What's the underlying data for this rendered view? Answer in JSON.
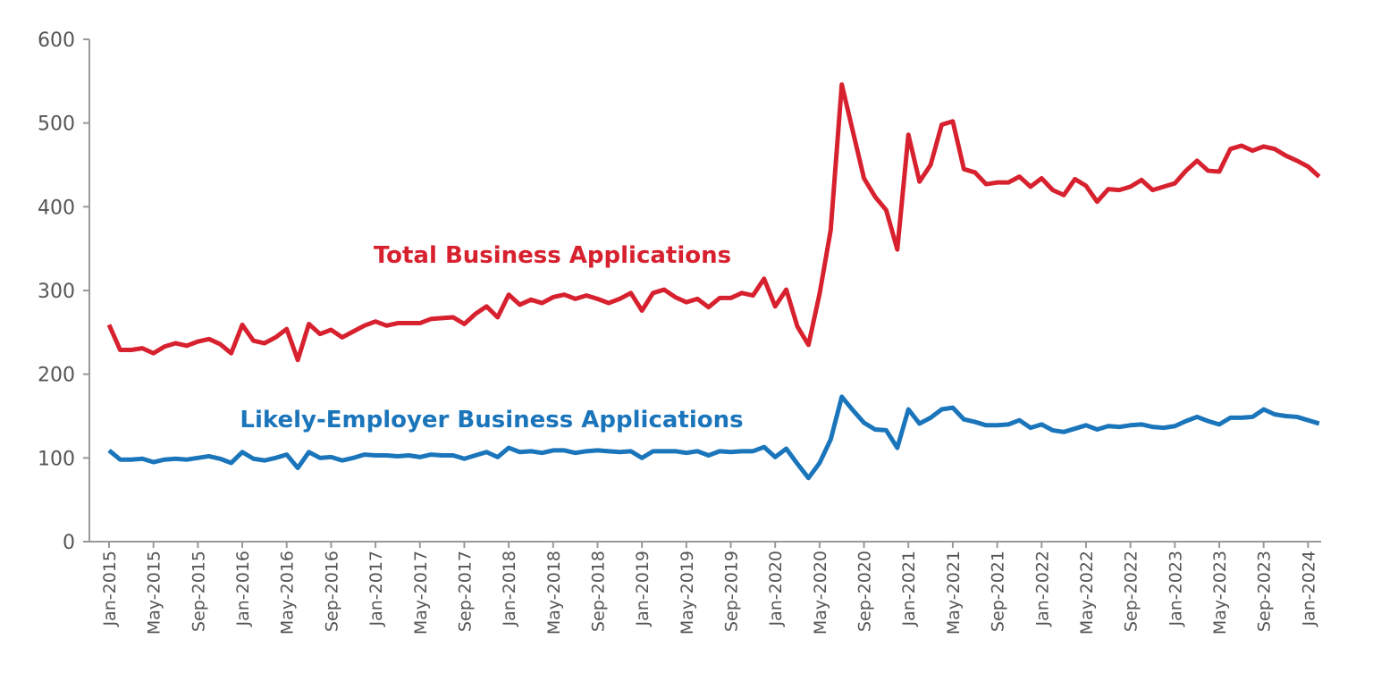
{
  "chart_data": {
    "type": "line",
    "categories": [
      "Jan-2015",
      null,
      null,
      null,
      "May-2015",
      null,
      null,
      null,
      "Sep-2015",
      null,
      null,
      null,
      "Jan-2016",
      null,
      null,
      null,
      "May-2016",
      null,
      null,
      null,
      "Sep-2016",
      null,
      null,
      null,
      "Jan-2017",
      null,
      null,
      null,
      "May-2017",
      null,
      null,
      null,
      "Sep-2017",
      null,
      null,
      null,
      "Jan-2018",
      null,
      null,
      null,
      "May-2018",
      null,
      null,
      null,
      "Sep-2018",
      null,
      null,
      null,
      "Jan-2019",
      null,
      null,
      null,
      "May-2019",
      null,
      null,
      null,
      "Sep-2019",
      null,
      null,
      null,
      "Jan-2020",
      null,
      null,
      null,
      "May-2020",
      null,
      null,
      null,
      "Sep-2020",
      null,
      null,
      null,
      "Jan-2021",
      null,
      null,
      null,
      "May-2021",
      null,
      null,
      null,
      "Sep-2021",
      null,
      null,
      null,
      "Jan-2022",
      null,
      null,
      null,
      "May-2022",
      null,
      null,
      null,
      "Sep-2022",
      null,
      null,
      null,
      "Jan-2023",
      null,
      null,
      null,
      "May-2023",
      null,
      null,
      null,
      "Sep-2023",
      null,
      null,
      null,
      "Jan-2024",
      null
    ],
    "series": [
      {
        "name": "Total Business Applications",
        "color": "#d7212f",
        "values": [
          259,
          229,
          229,
          231,
          225,
          233,
          237,
          234,
          239,
          242,
          236,
          225,
          259,
          240,
          237,
          244,
          254,
          217,
          260,
          248,
          253,
          244,
          251,
          258,
          263,
          258,
          261,
          261,
          261,
          266,
          267,
          268,
          260,
          272,
          281,
          268,
          295,
          283,
          289,
          285,
          292,
          295,
          290,
          294,
          290,
          285,
          290,
          297,
          276,
          297,
          301,
          292,
          286,
          290,
          280,
          291,
          291,
          297,
          294,
          314,
          281,
          301,
          257,
          235,
          296,
          372,
          546,
          490,
          434,
          412,
          396,
          349,
          486,
          430,
          450,
          498,
          502,
          445,
          441,
          427,
          429,
          429,
          436,
          424,
          434,
          420,
          414,
          433,
          425,
          406,
          421,
          420,
          424,
          432,
          420,
          424,
          428,
          443,
          455,
          443,
          442,
          469,
          473,
          467,
          472,
          469,
          461,
          455,
          448,
          436
        ]
      },
      {
        "name": "Likely-Employer Business Applications",
        "color": "#1a75bb",
        "values": [
          109,
          98,
          98,
          99,
          95,
          98,
          99,
          98,
          100,
          102,
          99,
          94,
          107,
          99,
          97,
          100,
          104,
          88,
          107,
          100,
          101,
          97,
          100,
          104,
          103,
          103,
          102,
          103,
          101,
          104,
          103,
          103,
          99,
          103,
          107,
          101,
          112,
          107,
          108,
          106,
          109,
          109,
          106,
          108,
          109,
          108,
          107,
          108,
          100,
          108,
          108,
          108,
          106,
          108,
          103,
          108,
          107,
          108,
          108,
          113,
          101,
          111,
          93,
          76,
          94,
          122,
          173,
          157,
          142,
          134,
          133,
          112,
          158,
          141,
          148,
          158,
          160,
          146,
          143,
          139,
          139,
          140,
          145,
          136,
          140,
          133,
          131,
          135,
          139,
          134,
          138,
          137,
          139,
          140,
          137,
          136,
          138,
          144,
          149,
          144,
          140,
          148,
          148,
          149,
          158,
          152,
          150,
          149,
          145,
          141
        ]
      }
    ],
    "ylim": [
      0,
      600
    ],
    "yticks": [
      0,
      100,
      200,
      300,
      400,
      500,
      600
    ]
  }
}
